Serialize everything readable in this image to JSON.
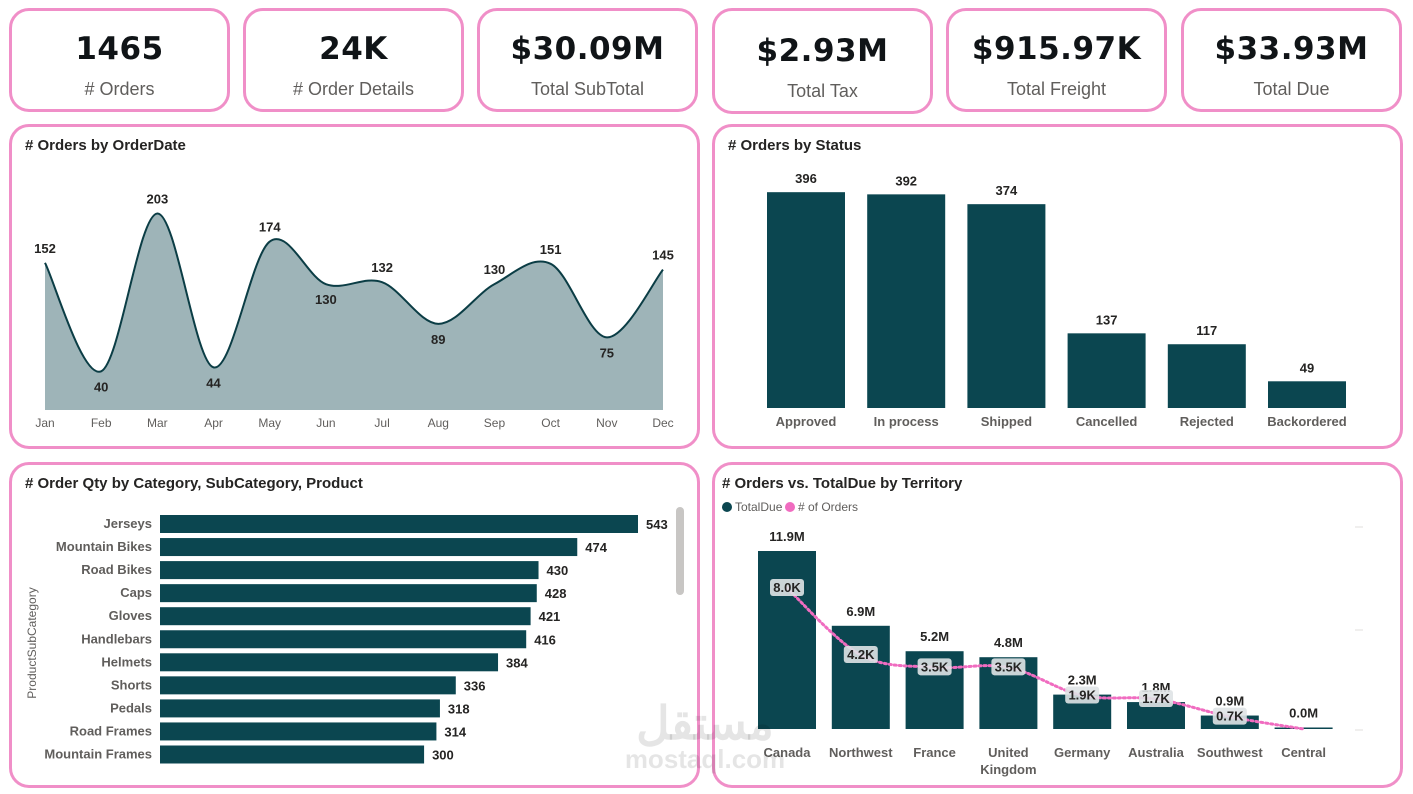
{
  "kpis": [
    {
      "value": "1465",
      "label": "# Orders"
    },
    {
      "value": "24K",
      "label": "# Order Details"
    },
    {
      "value": "$30.09M",
      "label": "Total SubTotal"
    },
    {
      "value": "$2.93M",
      "label": "Total Tax"
    },
    {
      "value": "$915.97K",
      "label": "Total Freight"
    },
    {
      "value": "$33.93M",
      "label": "Total Due"
    }
  ],
  "colors": {
    "accent_border": "#f08fc8",
    "bar": "#0b4650",
    "area": "#9eb4b8",
    "orders_line": "#f06cc0"
  },
  "watermark": {
    "arabic": "مستقل",
    "latin": "mostaql.com"
  },
  "chart_data": [
    {
      "type": "area",
      "title": "# Orders by OrderDate",
      "categories": [
        "Jan",
        "Feb",
        "Mar",
        "Apr",
        "May",
        "Jun",
        "Jul",
        "Aug",
        "Sep",
        "Oct",
        "Nov",
        "Dec"
      ],
      "values": [
        152,
        40,
        203,
        44,
        174,
        130,
        132,
        89,
        130,
        151,
        75,
        145
      ],
      "grid": false
    },
    {
      "type": "bar",
      "title": "# Orders by Status",
      "categories": [
        "Approved",
        "In process",
        "Shipped",
        "Cancelled",
        "Rejected",
        "Backordered"
      ],
      "values": [
        396,
        392,
        374,
        137,
        117,
        49
      ],
      "grid": false
    },
    {
      "type": "bar",
      "orientation": "horizontal",
      "title": "# Order Qty by Category, SubCategory, Product",
      "ylabel": "ProductSubCategory",
      "categories": [
        "Jerseys",
        "Mountain Bikes",
        "Road Bikes",
        "Caps",
        "Gloves",
        "Handlebars",
        "Helmets",
        "Shorts",
        "Pedals",
        "Road Frames",
        "Mountain Frames"
      ],
      "values": [
        543,
        474,
        430,
        428,
        421,
        416,
        384,
        336,
        318,
        314,
        300
      ],
      "grid": false
    },
    {
      "type": "bar",
      "title": "# Orders vs. TotalDue by Territory",
      "legend": "top-left",
      "categories": [
        "Canada",
        "Northwest",
        "France",
        "United Kingdom",
        "Germany",
        "Australia",
        "Southwest",
        "Central"
      ],
      "series": [
        {
          "name": "TotalDue",
          "kind": "bar",
          "values": [
            11.9,
            6.9,
            5.2,
            4.8,
            2.3,
            1.8,
            0.9,
            0.0
          ],
          "labels": [
            "11.9M",
            "6.9M",
            "5.2M",
            "4.8M",
            "2.3M",
            "1.8M",
            "0.9M",
            "0.0M"
          ]
        },
        {
          "name": "# of Orders",
          "kind": "line",
          "values": [
            8.0,
            4.2,
            3.5,
            3.5,
            1.9,
            1.7,
            0.7,
            0.0
          ],
          "labels": [
            "8.0K",
            "4.2K",
            "3.5K",
            "3.5K",
            "1.9K",
            "1.7K",
            "0.7K",
            ""
          ]
        }
      ],
      "grid": false
    }
  ]
}
